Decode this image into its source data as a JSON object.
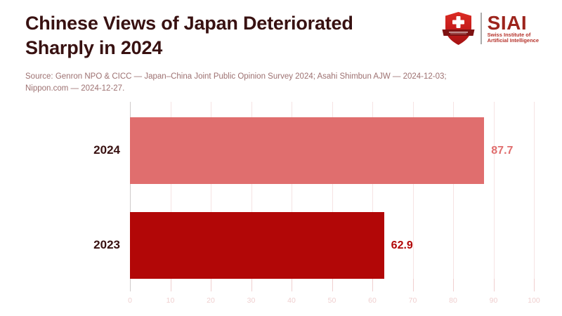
{
  "page": {
    "background": "#FFFFFF"
  },
  "header": {
    "title_line1": "Chinese Views of Japan Deteriorated",
    "title_line2": "Sharply in 2024",
    "title_color": "#381111",
    "source_line1": "Source: Genron NPO & CICC — Japan–China Joint Public Opinion Survey 2024; Asahi Shimbun AJW — 2024-12-03;",
    "source_line2": "Nippon.com — 2024-12-27.",
    "source_color": "#9D7171"
  },
  "logo": {
    "wordmark": "SIAI",
    "subtitle_line1": "Swiss Institute of",
    "subtitle_line2": "Artificial Intelligence",
    "wordmark_color": "#9C241C",
    "subtitle_color": "#B5322A",
    "shield_icon": "swiss-shield-cross-banner",
    "shield_red_top": "#DB2C23",
    "shield_red_bottom": "#A31212",
    "banner_red": "#7E1212"
  },
  "chart_data": {
    "type": "bar",
    "orientation": "horizontal",
    "title": "Chinese Views of Japan Deteriorated Sharply in 2024",
    "categories": [
      "2024",
      "2023"
    ],
    "values": [
      87.7,
      62.9
    ],
    "bar_colors": [
      "#E06E6E",
      "#B20707"
    ],
    "category_label_color": "#381111",
    "xlim": [
      0,
      100
    ],
    "x_ticks": [
      0,
      10,
      20,
      30,
      40,
      50,
      60,
      70,
      80,
      90,
      100
    ],
    "xlabel": "",
    "ylabel": "",
    "grid": true,
    "grid_color": "#F6E3E3",
    "zero_axis_color": "#CFCBCB",
    "tick_color": "#F0CFCF",
    "tick_label_color": "#EFCFCF",
    "legend": false,
    "value_labels_shown": true
  }
}
